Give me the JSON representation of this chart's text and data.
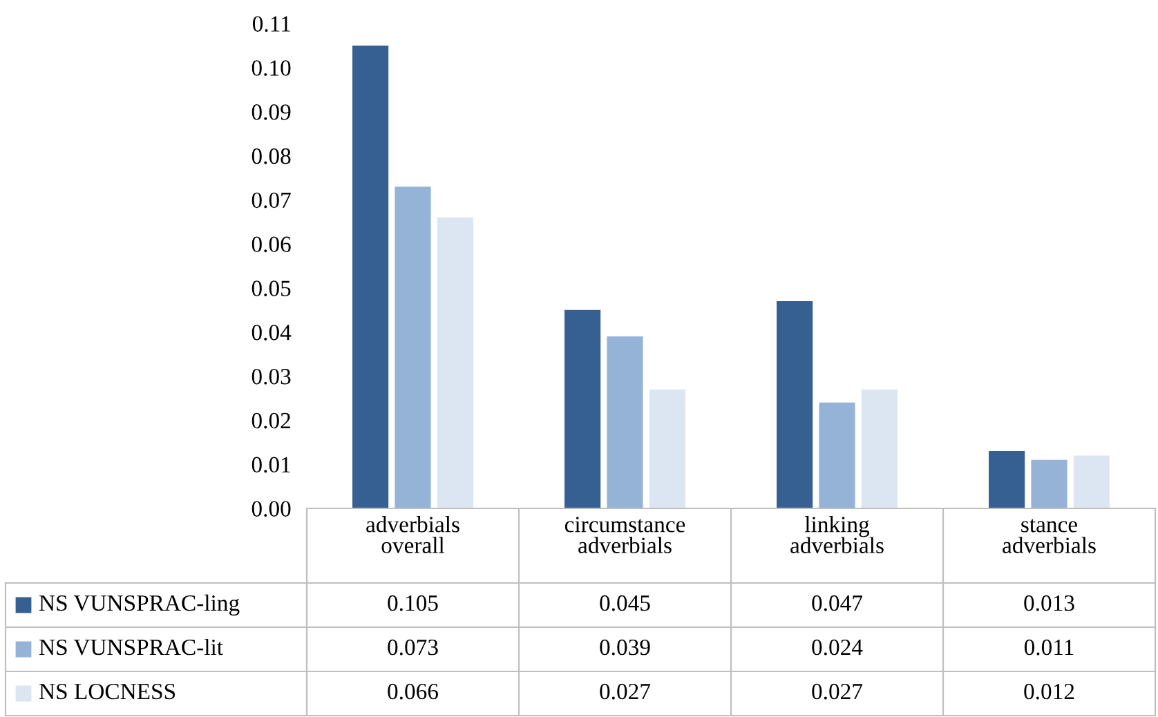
{
  "chart_data": {
    "type": "bar",
    "categories": [
      "adverbials\noverall",
      "circumstance\nadverbials",
      "linking\nadverbials",
      "stance\nadverbials"
    ],
    "series": [
      {
        "name": "NS VUNSPRAC-ling",
        "color": "#376092",
        "values": [
          0.105,
          0.045,
          0.047,
          0.013
        ]
      },
      {
        "name": "NS VUNSPRAC-lit",
        "color": "#95b3d7",
        "values": [
          0.073,
          0.039,
          0.024,
          0.011
        ]
      },
      {
        "name": "NS LOCNESS",
        "color": "#dce6f2",
        "values": [
          0.066,
          0.027,
          0.027,
          0.012
        ]
      }
    ],
    "ylim": [
      0,
      0.11
    ],
    "yticks": [
      {
        "value": 0,
        "label": "0.00"
      },
      {
        "value": 0.01,
        "label": "0.01"
      },
      {
        "value": 0.02,
        "label": "0.02"
      },
      {
        "value": 0.03,
        "label": "0.03"
      },
      {
        "value": 0.04,
        "label": "0.04"
      },
      {
        "value": 0.05,
        "label": "0.05"
      },
      {
        "value": 0.06,
        "label": "0.06"
      },
      {
        "value": 0.07,
        "label": "0.07"
      },
      {
        "value": 0.08,
        "label": "0.08"
      },
      {
        "value": 0.09,
        "label": "0.09"
      },
      {
        "value": 0.1,
        "label": "0.10"
      },
      {
        "value": 0.11,
        "label": "0.11"
      }
    ],
    "data_labels": true,
    "legend": "bottom",
    "grid": false
  }
}
